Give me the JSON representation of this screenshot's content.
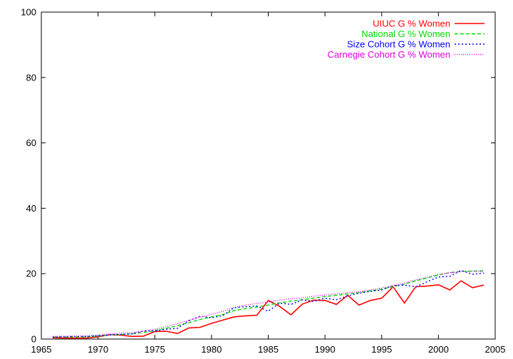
{
  "chart_data": {
    "type": "line",
    "title": "",
    "xlabel": "",
    "ylabel": "",
    "xlim": [
      1965,
      2005
    ],
    "ylim": [
      0,
      100
    ],
    "xticks": [
      1965,
      1970,
      1975,
      1980,
      1985,
      1990,
      1995,
      2000,
      2005
    ],
    "yticks": [
      0,
      20,
      40,
      60,
      80,
      100
    ],
    "grid": false,
    "legend_position": "top-right",
    "x": [
      1966,
      1967,
      1968,
      1969,
      1970,
      1971,
      1972,
      1973,
      1974,
      1975,
      1976,
      1977,
      1978,
      1979,
      1980,
      1981,
      1982,
      1983,
      1984,
      1985,
      1986,
      1987,
      1988,
      1989,
      1990,
      1991,
      1992,
      1993,
      1994,
      1995,
      1996,
      1997,
      1998,
      1999,
      2000,
      2001,
      2002,
      2003,
      2004
    ],
    "series": [
      {
        "name": "UIUC G % Women",
        "color": "#ff0000",
        "dash": "solid",
        "values": [
          0.4,
          0.3,
          0.3,
          0.3,
          0.7,
          1.3,
          1.2,
          0.8,
          0.9,
          2.3,
          2.4,
          1.7,
          3.4,
          3.6,
          4.8,
          5.8,
          6.8,
          7.1,
          7.3,
          11.8,
          10.0,
          7.4,
          10.7,
          11.9,
          11.8,
          10.6,
          13.4,
          10.4,
          11.8,
          12.5,
          16.0,
          11.0,
          16.0,
          16.2,
          16.6,
          15.0,
          17.8,
          15.7,
          16.5
        ]
      },
      {
        "name": "National G % Women",
        "color": "#00dd00",
        "dash": "dashed",
        "values": [
          0.6,
          0.6,
          0.6,
          0.7,
          0.9,
          1.2,
          1.4,
          1.6,
          2.0,
          2.6,
          3.3,
          4.1,
          5.0,
          6.0,
          6.8,
          7.5,
          8.7,
          9.3,
          9.8,
          10.4,
          11.1,
          11.6,
          12.0,
          12.5,
          13.0,
          13.4,
          13.8,
          14.2,
          14.7,
          15.3,
          16.0,
          16.8,
          17.8,
          18.7,
          19.6,
          20.3,
          20.7,
          20.8,
          20.9
        ]
      },
      {
        "name": "Size Cohort G % Women",
        "color": "#0000ff",
        "dash": "dotted",
        "values": [
          0.6,
          0.7,
          0.8,
          0.8,
          1.0,
          1.3,
          1.4,
          1.6,
          2.5,
          2.5,
          3.0,
          3.3,
          5.6,
          7.0,
          6.5,
          7.2,
          9.6,
          9.9,
          10.1,
          8.5,
          11.0,
          10.6,
          12.0,
          11.5,
          12.5,
          12.0,
          13.2,
          14.0,
          14.6,
          15.0,
          16.4,
          16.5,
          16.0,
          17.5,
          19.0,
          19.2,
          21.0,
          19.8,
          20.2
        ]
      },
      {
        "name": "Carnegie Cohort G % Women",
        "color": "#dd00dd",
        "dash": "dotted-fine",
        "values": [
          0.8,
          0.9,
          0.9,
          1.0,
          1.2,
          1.5,
          1.8,
          2.0,
          2.4,
          3.0,
          3.8,
          4.7,
          5.7,
          6.7,
          7.6,
          8.5,
          9.7,
          10.4,
          10.9,
          11.3,
          11.9,
          12.3,
          12.6,
          13.1,
          13.5,
          13.8,
          14.2,
          14.5,
          15.0,
          15.6,
          16.3,
          17.1,
          18.1,
          18.9,
          19.7,
          20.3,
          20.6,
          20.7,
          20.7
        ]
      }
    ]
  }
}
